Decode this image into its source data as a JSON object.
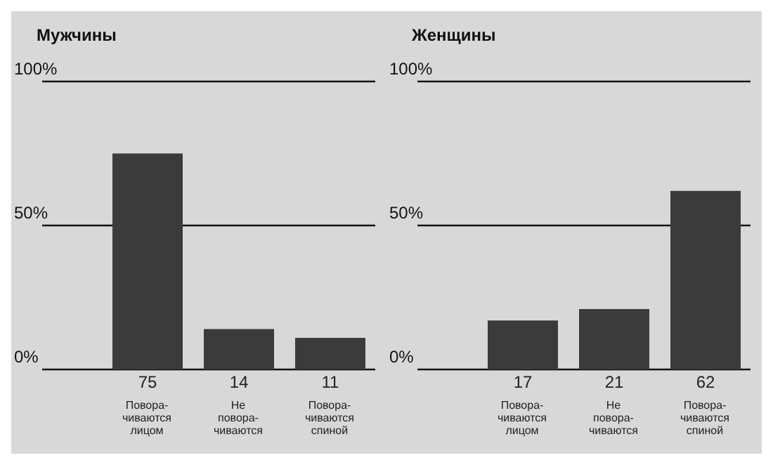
{
  "chart_data": [
    {
      "type": "bar",
      "title": "Мужчины",
      "categories": [
        "Повора-\nчиваются\nлицом",
        "Не\nповора-\nчиваются",
        "Повора-\nчиваются\nспиной"
      ],
      "values": [
        75,
        14,
        11
      ],
      "color": "#3b3b3b",
      "ylim": [
        0,
        100
      ],
      "yticks": [
        {
          "value": 0,
          "label": "0%"
        },
        {
          "value": 50,
          "label": "50%"
        },
        {
          "value": 100,
          "label": "100%"
        }
      ],
      "grid": "y",
      "data_labels": true
    },
    {
      "type": "bar",
      "title": "Женщины",
      "categories": [
        "Повора-\nчиваются\nлицом",
        "Не\nповора-\nчиваются",
        "Повора-\nчиваются\nспиной"
      ],
      "values": [
        17,
        21,
        62
      ],
      "color": "#3b3b3b",
      "ylim": [
        0,
        100
      ],
      "yticks": [
        {
          "value": 0,
          "label": "0%"
        },
        {
          "value": 50,
          "label": "50%"
        },
        {
          "value": 100,
          "label": "100%"
        }
      ],
      "grid": "y",
      "data_labels": true
    }
  ]
}
